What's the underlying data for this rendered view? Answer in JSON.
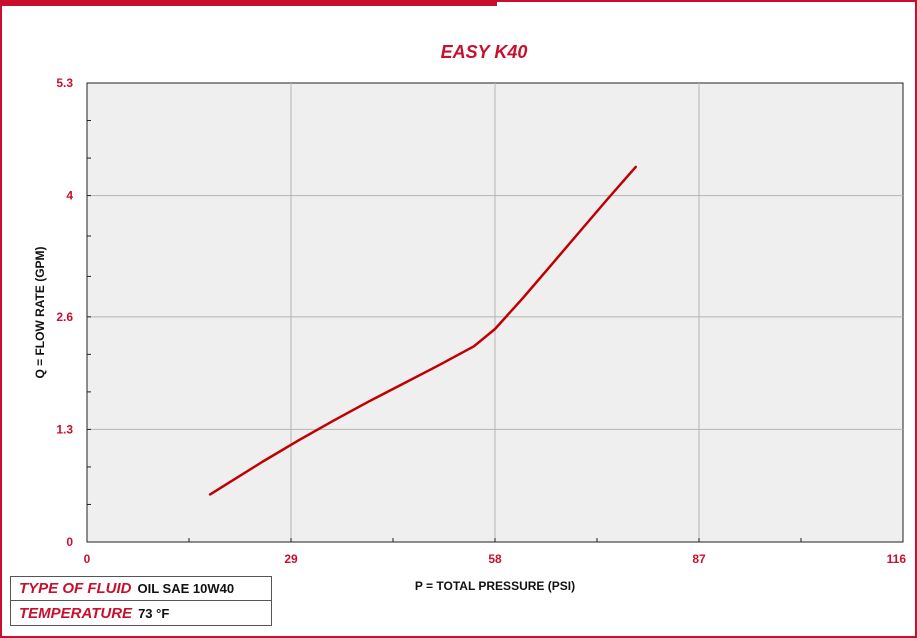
{
  "chart_data": {
    "type": "line",
    "title": "EASY K40",
    "xlabel": "P = TOTAL PRESSURE (PSI)",
    "ylabel": "Q = FLOW RATE  (GPM)",
    "xlim": [
      0,
      116
    ],
    "ylim": [
      0,
      5.3
    ],
    "x_ticks": [
      0,
      29,
      58,
      87,
      116
    ],
    "y_ticks": [
      0,
      1.3,
      2.6,
      4,
      5.3
    ],
    "x_tick_labels": [
      "0",
      "29",
      "58",
      "87",
      "116"
    ],
    "y_tick_labels": [
      "0",
      "1.3",
      "2.6",
      "4",
      "5.3"
    ],
    "grid": true,
    "series": [
      {
        "color": "#c00000",
        "x": [
          17.5,
          25,
          30,
          35,
          40,
          45,
          50,
          55,
          58,
          62,
          66,
          70,
          74,
          78
        ],
        "y": [
          0.55,
          0.93,
          1.17,
          1.4,
          1.62,
          1.83,
          2.04,
          2.26,
          2.46,
          2.82,
          3.2,
          3.58,
          3.96,
          4.33
        ]
      }
    ]
  },
  "info_box": {
    "fluid_label": "TYPE OF FLUID",
    "fluid_value": "OIL SAE 10W40",
    "temperature_label": "TEMPERATURE",
    "temperature_value": "73 °F"
  },
  "colors": {
    "accent": "#c8102e",
    "plot_background": "#efefef",
    "grid": "#b5b5b5",
    "series": "#c00000"
  }
}
